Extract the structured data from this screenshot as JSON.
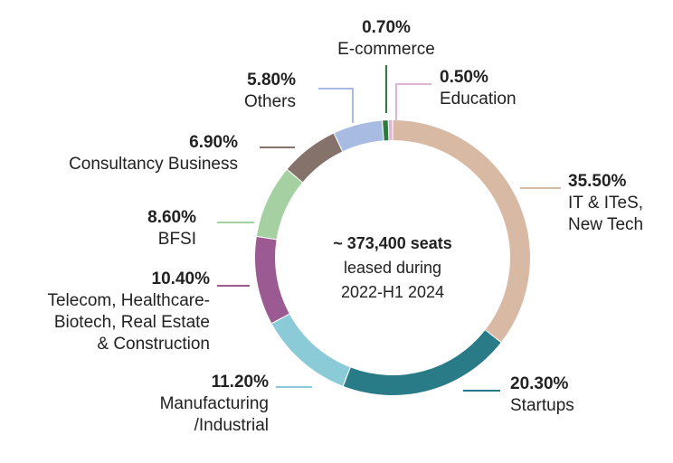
{
  "chart_data": {
    "type": "pie",
    "variant": "donut",
    "center_text": [
      "~ 373,400 seats",
      "leased during",
      "2022-H1 2024"
    ],
    "slices": [
      {
        "pct": "35.50%",
        "value": 35.5,
        "label": [
          "IT & ITeS,",
          "New Tech"
        ],
        "color": "#d8b9a3"
      },
      {
        "pct": "20.30%",
        "value": 20.3,
        "label": [
          "Startups"
        ],
        "color": "#2a7b88"
      },
      {
        "pct": "11.20%",
        "value": 11.2,
        "label": [
          "Manufacturing",
          "/Industrial"
        ],
        "color": "#8bcbd8"
      },
      {
        "pct": "10.40%",
        "value": 10.4,
        "label": [
          "Telecom, Healthcare-",
          "Biotech, Real Estate",
          "& Construction"
        ],
        "color": "#9c5a93"
      },
      {
        "pct": "8.60%",
        "value": 8.6,
        "label": [
          "BFSI"
        ],
        "color": "#a4d0a2"
      },
      {
        "pct": "6.90%",
        "value": 6.9,
        "label": [
          "Consultancy Business"
        ],
        "color": "#85736b"
      },
      {
        "pct": "5.80%",
        "value": 5.8,
        "label": [
          "Others"
        ],
        "color": "#a8bbe1"
      },
      {
        "pct": "0.70%",
        "value": 0.7,
        "label": [
          "E-commerce"
        ],
        "color": "#2e7a3e"
      },
      {
        "pct": "0.50%",
        "value": 0.5,
        "label": [
          "Education"
        ],
        "color": "#ddb3d6"
      }
    ]
  }
}
